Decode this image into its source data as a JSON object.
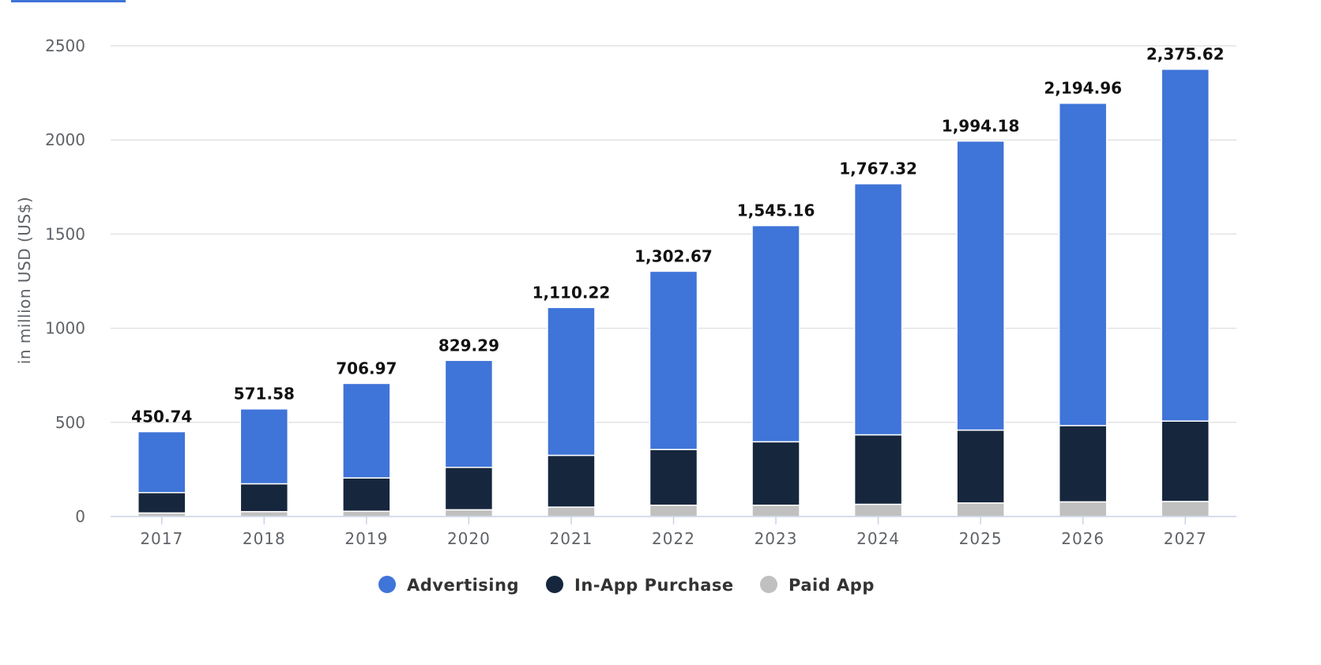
{
  "chart_data": {
    "type": "bar",
    "stacked": true,
    "title": "",
    "xlabel": "",
    "ylabel": "in million USD (US$)",
    "ylim": [
      0,
      2500
    ],
    "yticks": [
      0,
      500,
      1000,
      1500,
      2000,
      2500
    ],
    "grid": true,
    "legend_position": "bottom",
    "categories": [
      "2017",
      "2018",
      "2019",
      "2020",
      "2021",
      "2022",
      "2023",
      "2024",
      "2025",
      "2026",
      "2027"
    ],
    "series": [
      {
        "name": "Paid App",
        "color": "#c0c0c0",
        "values": [
          19,
          26,
          28,
          36,
          50,
          60,
          60,
          65,
          72,
          78,
          80
        ]
      },
      {
        "name": "In-App Purchase",
        "color": "#16263d",
        "values": [
          108,
          148,
          177,
          225,
          275,
          296,
          337,
          369,
          387,
          405,
          427
        ]
      },
      {
        "name": "Advertising",
        "color": "#3f74d8",
        "values": [
          323.74,
          397.58,
          501.97,
          568.29,
          785.22,
          946.67,
          1148.16,
          1333.32,
          1535.18,
          1711.96,
          1868.62
        ]
      }
    ],
    "totals": [
      "450.74",
      "571.58",
      "706.97",
      "829.29",
      "1,110.22",
      "1,302.67",
      "1,545.16",
      "1,767.32",
      "1,994.18",
      "2,194.96",
      "2,375.62"
    ],
    "legend_order": [
      "Advertising",
      "In-App Purchase",
      "Paid App"
    ]
  }
}
